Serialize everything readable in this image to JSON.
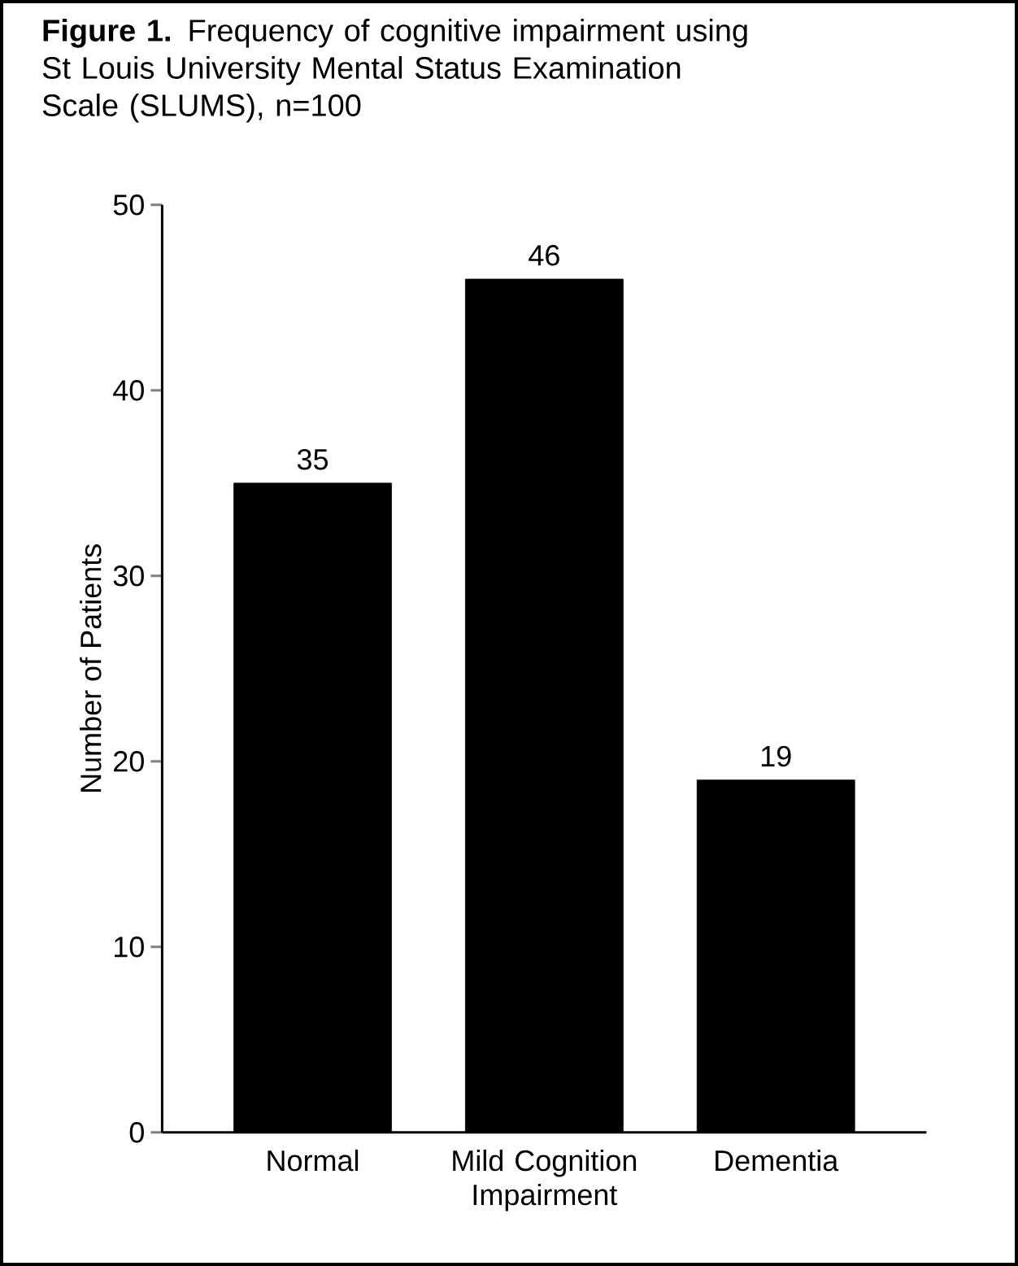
{
  "chart_data": {
    "type": "bar",
    "title": "**Figure 1.** Frequency of cognitive impairment using St Louis University Mental Status Examination Scale (SLUMS), n=100",
    "ylabel": "Number of Patients",
    "categories": [
      "Normal",
      "Mild Cognition Impairment",
      "Dementia"
    ],
    "values": [
      35,
      46,
      19
    ],
    "color": "#000000",
    "ylim": [
      0,
      50
    ],
    "yticks": [
      0,
      10,
      20,
      30,
      40,
      50
    ],
    "data_labels": true,
    "grid": false
  }
}
